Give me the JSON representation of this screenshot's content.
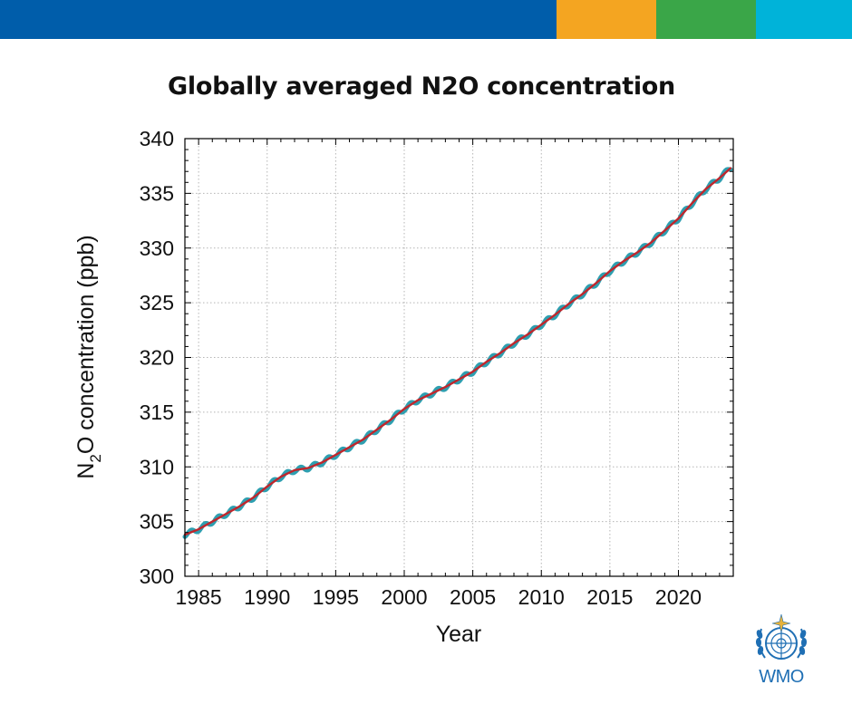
{
  "header": {
    "colors": [
      "#005daa",
      "#f4a521",
      "#3aa648",
      "#00b3d9"
    ]
  },
  "chart_data": {
    "type": "line",
    "title": "Globally averaged N2O concentration",
    "xlabel": "Year",
    "ylabel_parts": [
      "N",
      "2",
      "O concentration (ppb)"
    ],
    "xlim": [
      1984,
      2024
    ],
    "ylim": [
      300,
      340
    ],
    "x_ticks": [
      1985,
      1990,
      1995,
      2000,
      2005,
      2010,
      2015,
      2020
    ],
    "y_ticks": [
      300,
      305,
      310,
      315,
      320,
      325,
      330,
      335,
      340
    ],
    "grid": true,
    "series": [
      {
        "color": "#2e9fb0",
        "seasonal_amplitude": 0.2,
        "points": [
          [
            1984.0,
            303.8
          ],
          [
            1985.0,
            304.3
          ],
          [
            1986.0,
            305.0
          ],
          [
            1987.0,
            305.7
          ],
          [
            1988.0,
            306.4
          ],
          [
            1989.0,
            307.2
          ],
          [
            1990.0,
            308.2
          ],
          [
            1991.0,
            309.1
          ],
          [
            1992.0,
            309.7
          ],
          [
            1993.0,
            309.9
          ],
          [
            1994.0,
            310.4
          ],
          [
            1995.0,
            311.1
          ],
          [
            1996.0,
            311.8
          ],
          [
            1997.0,
            312.5
          ],
          [
            1998.0,
            313.4
          ],
          [
            1999.0,
            314.3
          ],
          [
            2000.0,
            315.3
          ],
          [
            2001.0,
            316.1
          ],
          [
            2002.0,
            316.7
          ],
          [
            2003.0,
            317.3
          ],
          [
            2004.0,
            318.0
          ],
          [
            2005.0,
            318.7
          ],
          [
            2006.0,
            319.6
          ],
          [
            2007.0,
            320.4
          ],
          [
            2008.0,
            321.3
          ],
          [
            2009.0,
            322.1
          ],
          [
            2010.0,
            323.0
          ],
          [
            2011.0,
            323.9
          ],
          [
            2012.0,
            324.9
          ],
          [
            2013.0,
            325.8
          ],
          [
            2014.0,
            326.8
          ],
          [
            2015.0,
            327.9
          ],
          [
            2016.0,
            328.8
          ],
          [
            2017.0,
            329.6
          ],
          [
            2018.0,
            330.5
          ],
          [
            2019.0,
            331.6
          ],
          [
            2020.0,
            332.7
          ],
          [
            2021.0,
            334.1
          ],
          [
            2022.0,
            335.4
          ],
          [
            2023.0,
            336.4
          ],
          [
            2023.8,
            337.3
          ]
        ]
      },
      {
        "color": "#c0262c",
        "points": [
          [
            1984.0,
            303.8
          ],
          [
            1985.0,
            304.3
          ],
          [
            1986.0,
            305.0
          ],
          [
            1987.0,
            305.7
          ],
          [
            1988.0,
            306.4
          ],
          [
            1989.0,
            307.2
          ],
          [
            1990.0,
            308.2
          ],
          [
            1991.0,
            309.1
          ],
          [
            1992.0,
            309.7
          ],
          [
            1993.0,
            309.9
          ],
          [
            1994.0,
            310.4
          ],
          [
            1995.0,
            311.1
          ],
          [
            1996.0,
            311.8
          ],
          [
            1997.0,
            312.5
          ],
          [
            1998.0,
            313.4
          ],
          [
            1999.0,
            314.3
          ],
          [
            2000.0,
            315.3
          ],
          [
            2001.0,
            316.1
          ],
          [
            2002.0,
            316.7
          ],
          [
            2003.0,
            317.3
          ],
          [
            2004.0,
            318.0
          ],
          [
            2005.0,
            318.7
          ],
          [
            2006.0,
            319.6
          ],
          [
            2007.0,
            320.4
          ],
          [
            2008.0,
            321.3
          ],
          [
            2009.0,
            322.1
          ],
          [
            2010.0,
            323.0
          ],
          [
            2011.0,
            323.9
          ],
          [
            2012.0,
            324.9
          ],
          [
            2013.0,
            325.8
          ],
          [
            2014.0,
            326.8
          ],
          [
            2015.0,
            327.9
          ],
          [
            2016.0,
            328.8
          ],
          [
            2017.0,
            329.6
          ],
          [
            2018.0,
            330.5
          ],
          [
            2019.0,
            331.6
          ],
          [
            2020.0,
            332.7
          ],
          [
            2021.0,
            334.1
          ],
          [
            2022.0,
            335.4
          ],
          [
            2023.0,
            336.4
          ],
          [
            2023.8,
            337.3
          ]
        ]
      }
    ]
  },
  "logo": {
    "text": "WMO",
    "icon": "wmo-emblem-icon",
    "color": "#1f6fb4"
  }
}
